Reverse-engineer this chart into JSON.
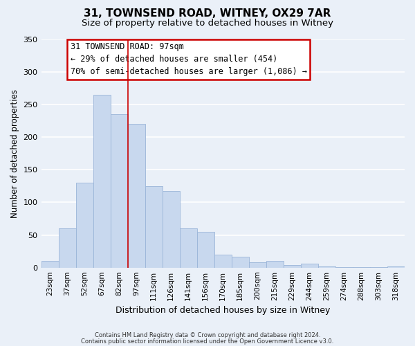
{
  "title": "31, TOWNSEND ROAD, WITNEY, OX29 7AR",
  "subtitle": "Size of property relative to detached houses in Witney",
  "xlabel": "Distribution of detached houses by size in Witney",
  "ylabel": "Number of detached properties",
  "bar_labels": [
    "23sqm",
    "37sqm",
    "52sqm",
    "67sqm",
    "82sqm",
    "97sqm",
    "111sqm",
    "126sqm",
    "141sqm",
    "156sqm",
    "170sqm",
    "185sqm",
    "200sqm",
    "215sqm",
    "229sqm",
    "244sqm",
    "259sqm",
    "274sqm",
    "288sqm",
    "303sqm",
    "318sqm"
  ],
  "bar_values": [
    10,
    60,
    130,
    265,
    235,
    220,
    125,
    117,
    60,
    55,
    20,
    17,
    8,
    10,
    4,
    6,
    2,
    1,
    1,
    1,
    2
  ],
  "bar_color": "#c8d8ee",
  "bar_edge_color": "#9ab5d8",
  "highlight_index": 4,
  "highlight_line_color": "#cc0000",
  "ylim": [
    0,
    350
  ],
  "yticks": [
    0,
    50,
    100,
    150,
    200,
    250,
    300,
    350
  ],
  "annotation_title": "31 TOWNSEND ROAD: 97sqm",
  "annotation_line1": "← 29% of detached houses are smaller (454)",
  "annotation_line2": "70% of semi-detached houses are larger (1,086) →",
  "annotation_box_color": "#ffffff",
  "annotation_box_edge": "#cc0000",
  "footer1": "Contains HM Land Registry data © Crown copyright and database right 2024.",
  "footer2": "Contains public sector information licensed under the Open Government Licence v3.0.",
  "background_color": "#eaf0f8",
  "grid_color": "#ffffff",
  "title_fontsize": 11,
  "subtitle_fontsize": 9.5,
  "ylabel_fontsize": 8.5,
  "xlabel_fontsize": 9
}
